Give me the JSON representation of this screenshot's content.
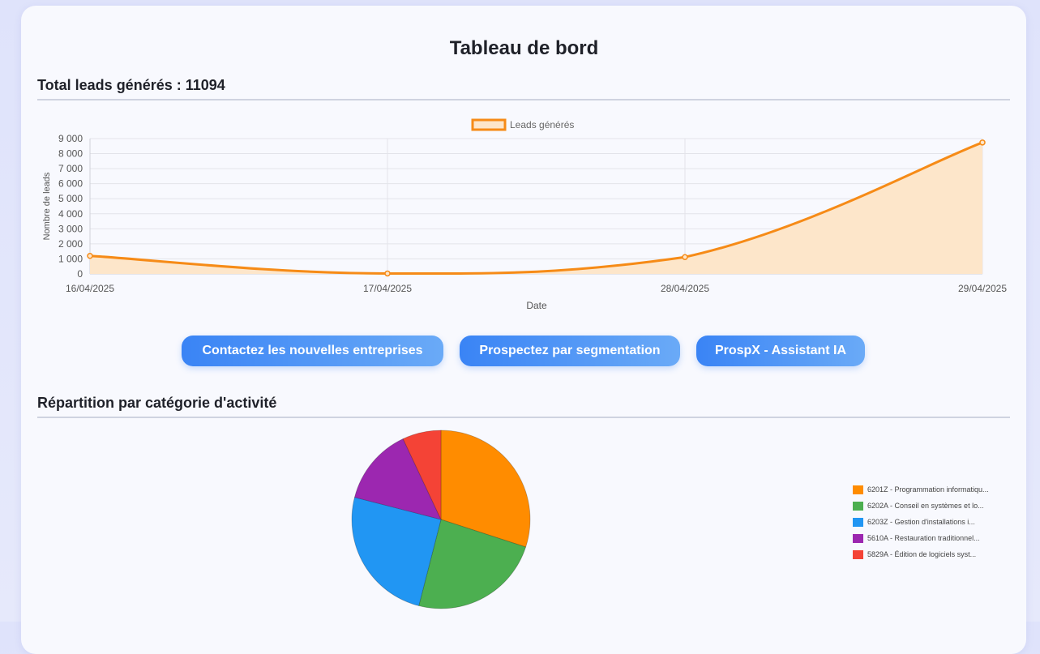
{
  "page": {
    "title": "Tableau de bord"
  },
  "leads": {
    "title": "Total leads générés : 11094"
  },
  "line_chart": {
    "chart_data": {
      "type": "area",
      "legend": "Leads générés",
      "xlabel": "Date",
      "ylabel": "Nombre de leads",
      "categories": [
        "16/04/2025",
        "17/04/2025",
        "28/04/2025",
        "29/04/2025"
      ],
      "values": [
        1200,
        30,
        1120,
        8740
      ],
      "ylim": [
        0,
        9000
      ],
      "yticks": [
        0,
        1000,
        2000,
        3000,
        4000,
        5000,
        6000,
        7000,
        8000,
        9000
      ],
      "ytick_labels": [
        "0",
        "1 000",
        "2 000",
        "3 000",
        "4 000",
        "5 000",
        "6 000",
        "7 000",
        "8 000",
        "9 000"
      ],
      "grid": true,
      "color": "#f68b17",
      "fill": "#fde6ca"
    }
  },
  "buttons": [
    {
      "label": "Contactez les nouvelles entreprises"
    },
    {
      "label": "Prospectez par segmentation"
    },
    {
      "label": "ProspX - Assistant IA"
    }
  ],
  "categories": {
    "title": "Répartition par catégorie d'activité"
  },
  "pie_chart": {
    "chart_data": {
      "type": "pie",
      "labels": [
        "6201Z - Programmation informatiqu...",
        "6202A - Conseil en systèmes et lo...",
        "6203Z - Gestion d'installations i...",
        "5610A - Restauration traditionnel...",
        "5829A - Édition de logiciels syst..."
      ],
      "values": [
        30,
        24,
        25,
        14,
        7
      ],
      "colors": [
        "#ff8c00",
        "#4caf50",
        "#2196f3",
        "#9c27b0",
        "#f44336"
      ],
      "legend_position": "right"
    }
  }
}
